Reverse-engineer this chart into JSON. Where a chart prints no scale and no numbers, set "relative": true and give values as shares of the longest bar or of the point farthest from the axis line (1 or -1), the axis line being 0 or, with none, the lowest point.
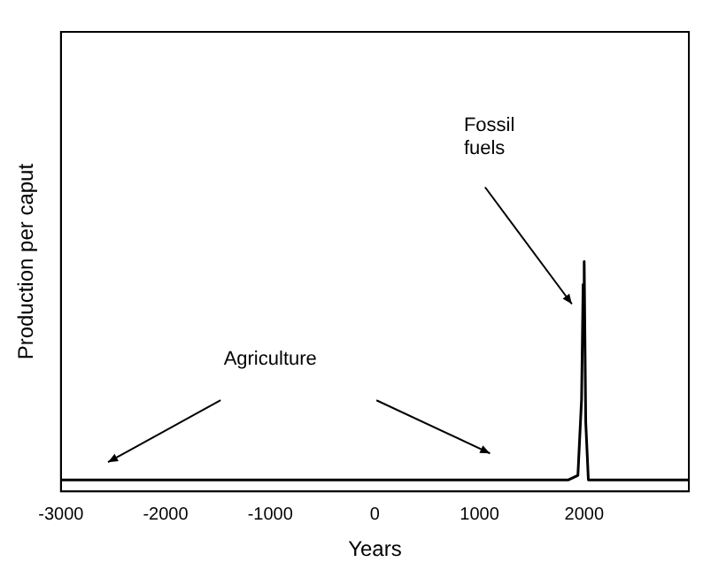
{
  "chart_data": {
    "type": "line",
    "xlabel": "Years",
    "ylabel": "Production per caput",
    "relative": true,
    "x": [
      -3000,
      1850,
      1940,
      1975,
      1990,
      2000,
      2015,
      2040,
      3000
    ],
    "values": [
      0.05,
      0.05,
      0.07,
      0.4,
      0.9,
      1,
      0.3,
      0.05,
      0.05
    ],
    "color": "#000000",
    "marker": "none",
    "grid": false,
    "legend": false,
    "xlim": [
      -3000,
      3000
    ],
    "xticks": [
      -3000,
      -2000,
      -1000,
      0,
      1000,
      2000
    ],
    "annotations": [
      "Agriculture",
      "Fossil fuels"
    ]
  }
}
